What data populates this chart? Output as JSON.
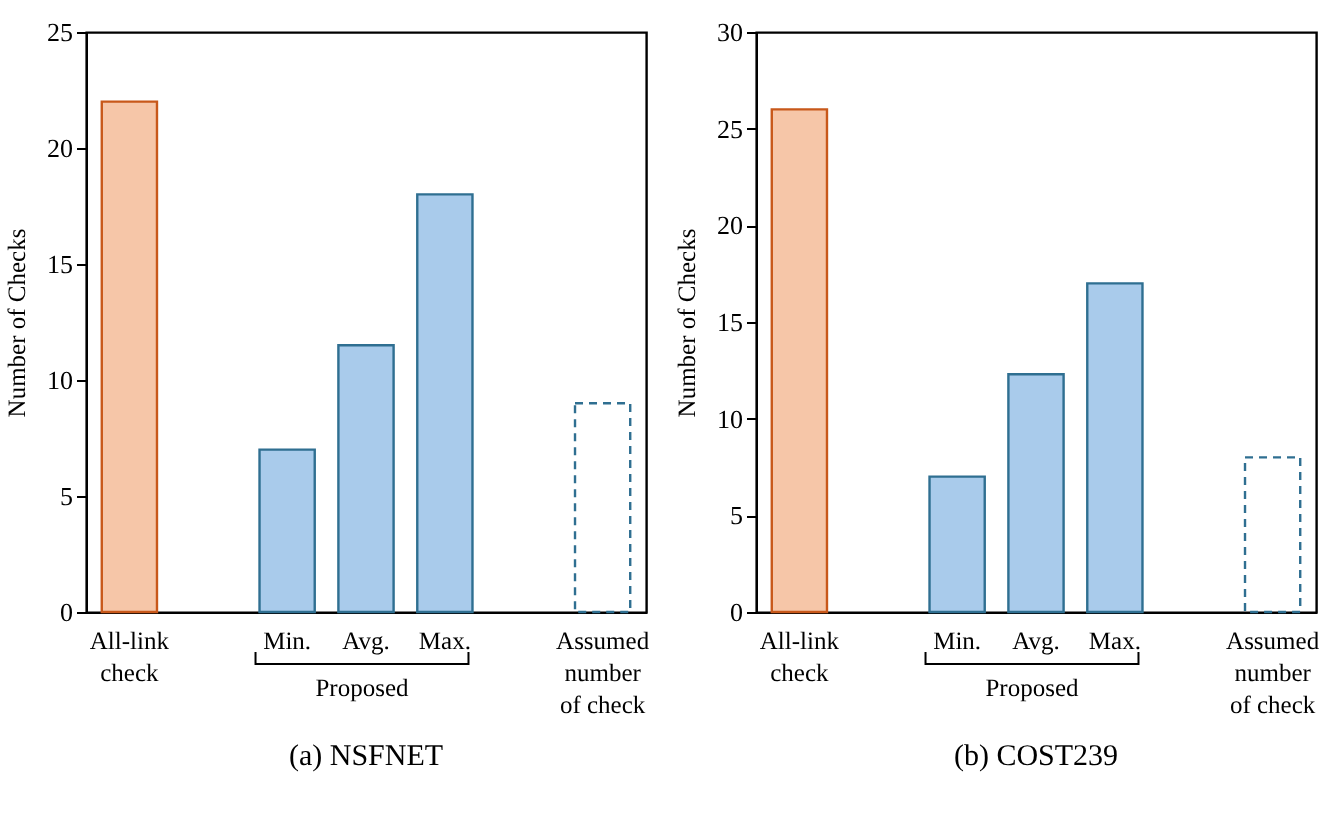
{
  "chart_data": [
    {
      "type": "bar",
      "title": "(a) NSFNET",
      "ylabel": "Number of Checks",
      "categories": [
        "All-link check",
        null,
        "Min.",
        "Avg.",
        "Max.",
        null,
        "Assumed number of check"
      ],
      "series": [
        {
          "colors": [
            "#f6c6a8",
            null,
            "#a9cbeb",
            "#a9cbeb",
            "#a9cbeb",
            null,
            null
          ],
          "values": [
            22,
            null,
            7,
            11.5,
            18,
            null,
            null
          ]
        },
        {
          "color": "#2f6f91",
          "line_style": "dashed",
          "values": [
            null,
            null,
            null,
            null,
            null,
            null,
            9
          ]
        }
      ],
      "ylim": [
        0,
        25
      ],
      "yticks": [
        0,
        5,
        10,
        15,
        20,
        25
      ],
      "grid": false,
      "annotations": [
        "Proposed"
      ]
    },
    {
      "type": "bar",
      "title": "(b) COST239",
      "ylabel": "Number of Checks",
      "categories": [
        "All-link check",
        null,
        "Min.",
        "Avg.",
        "Max.",
        null,
        "Assumed number of check"
      ],
      "series": [
        {
          "colors": [
            "#f6c6a8",
            null,
            "#a9cbeb",
            "#a9cbeb",
            "#a9cbeb",
            null,
            null
          ],
          "values": [
            26,
            null,
            7,
            12.3,
            17,
            null,
            null
          ]
        },
        {
          "color": "#2f6f91",
          "line_style": "dashed",
          "values": [
            null,
            null,
            null,
            null,
            null,
            null,
            8
          ]
        }
      ],
      "ylim": [
        0,
        30
      ],
      "yticks": [
        0,
        5,
        10,
        15,
        20,
        25,
        30
      ],
      "grid": false,
      "annotations": [
        "Proposed"
      ]
    }
  ]
}
